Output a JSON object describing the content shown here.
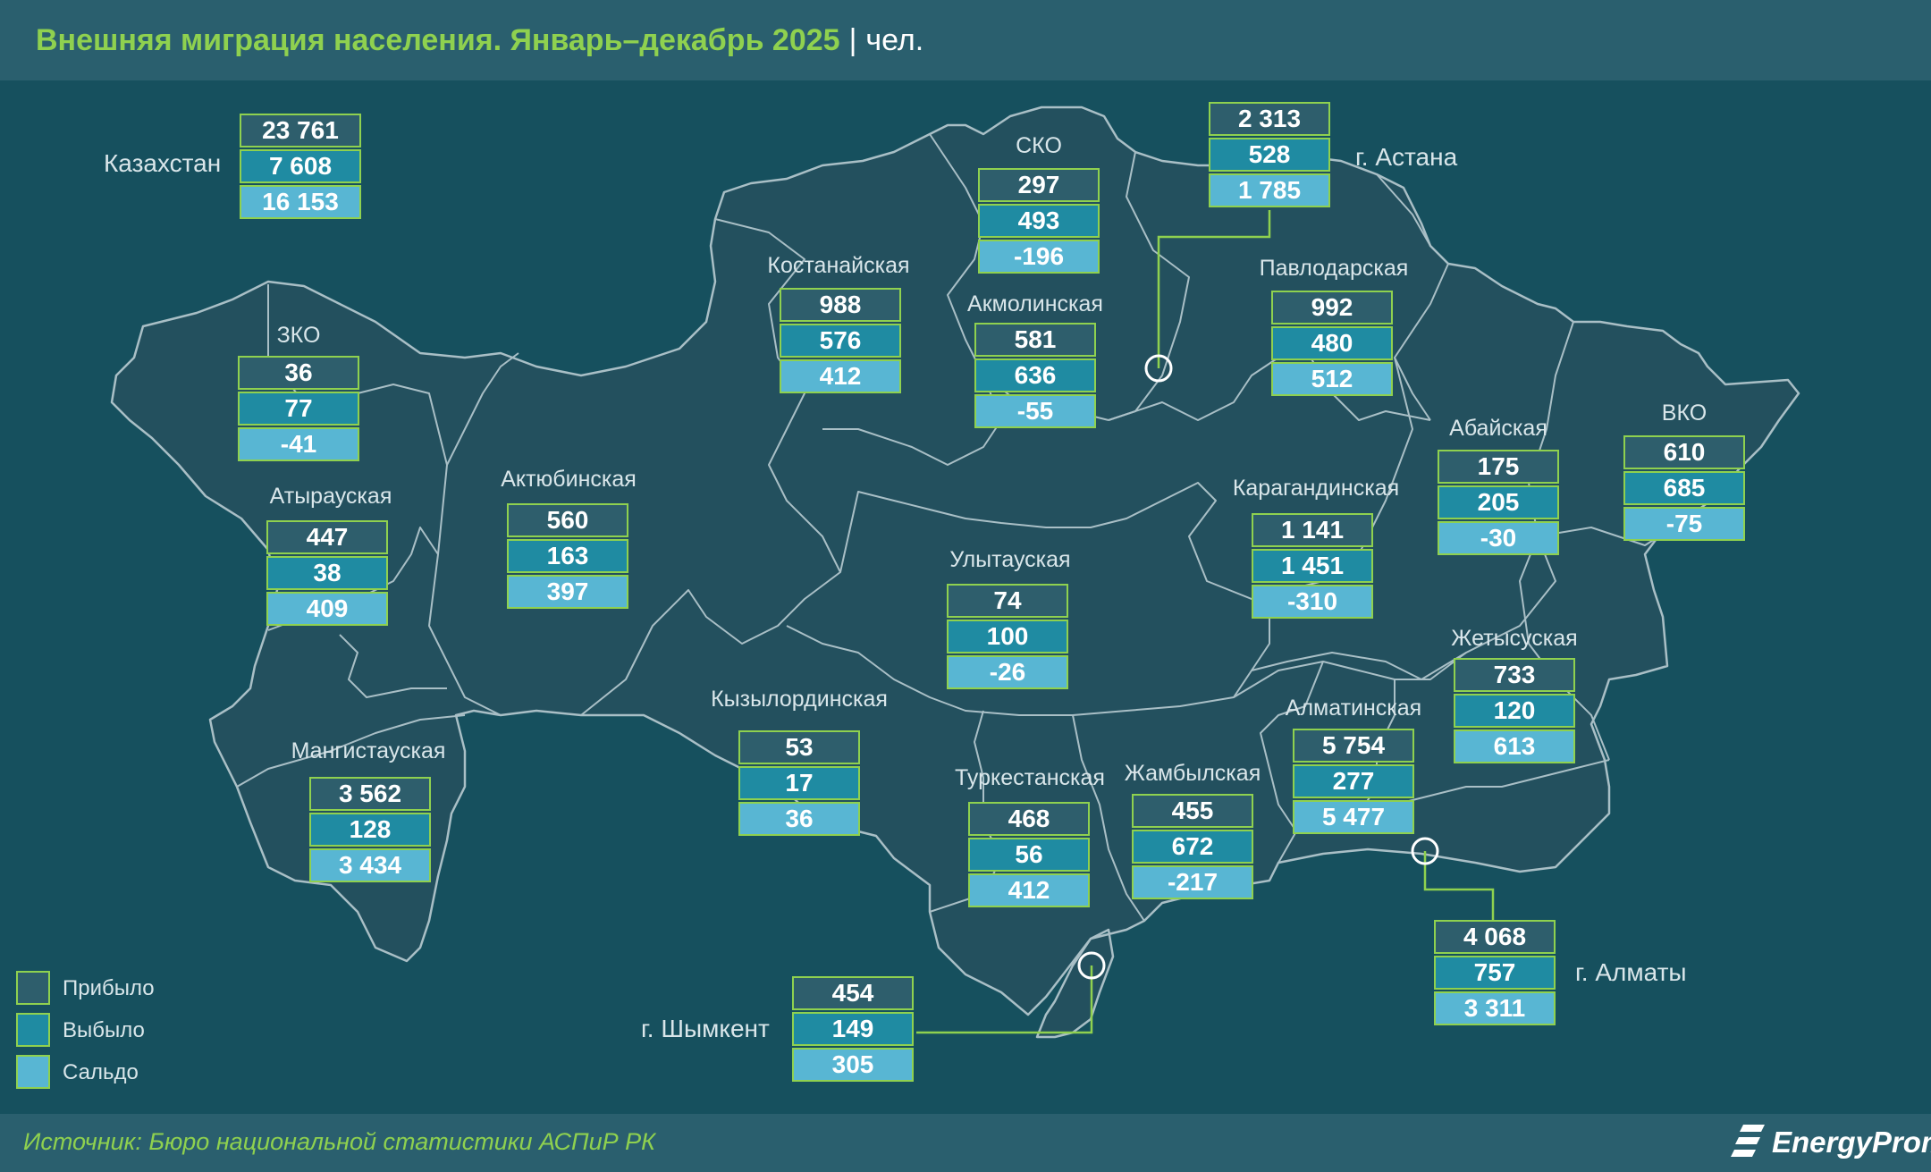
{
  "header": {
    "title": "Внешняя миграция населения. Январь–декабрь 2025",
    "separator": "|",
    "unit": "чел."
  },
  "footer": {
    "source": "Источник: Бюро национальной статистики АСПиР РК",
    "logo_text": "EnergyProm",
    "logo_icon": "energyprom-logo-icon"
  },
  "legend": [
    {
      "label": "Прибыло",
      "color": "#2e5e6c"
    },
    {
      "label": "Выбыло",
      "color": "#1f8ba2"
    },
    {
      "label": "Сальдо",
      "color": "#58b6d3"
    }
  ],
  "colors": {
    "accent": "#8fd14f",
    "background": "#16505e",
    "region_fill": "#23505e",
    "border": "#a9bfc6"
  },
  "regions": {
    "kazakhstan": {
      "name": "Казахстан",
      "arrived": "23 761",
      "left": "7 608",
      "saldo": "16 153"
    },
    "astana": {
      "name": "г. Астана",
      "arrived": "2 313",
      "left": "528",
      "saldo": "1 785"
    },
    "sko": {
      "name": "СКО",
      "arrived": "297",
      "left": "493",
      "saldo": "-196"
    },
    "kostanai": {
      "name": "Костанайская",
      "arrived": "988",
      "left": "576",
      "saldo": "412"
    },
    "akmola": {
      "name": "Акмолинская",
      "arrived": "581",
      "left": "636",
      "saldo": "-55"
    },
    "pavlodar": {
      "name": "Павлодарская",
      "arrived": "992",
      "left": "480",
      "saldo": "512"
    },
    "zko": {
      "name": "ЗКО",
      "arrived": "36",
      "left": "77",
      "saldo": "-41"
    },
    "abai": {
      "name": "Абайская",
      "arrived": "175",
      "left": "205",
      "saldo": "-30"
    },
    "vko": {
      "name": "ВКО",
      "arrived": "610",
      "left": "685",
      "saldo": "-75"
    },
    "atyrau": {
      "name": "Атырауская",
      "arrived": "447",
      "left": "38",
      "saldo": "409"
    },
    "aktobe": {
      "name": "Актюбинская",
      "arrived": "560",
      "left": "163",
      "saldo": "397"
    },
    "karaganda": {
      "name": "Карагандинская",
      "arrived": "1 141",
      "left": "1 451",
      "saldo": "-310"
    },
    "ulytau": {
      "name": "Улытауская",
      "arrived": "74",
      "left": "100",
      "saldo": "-26"
    },
    "zhetysu": {
      "name": "Жетысуская",
      "arrived": "733",
      "left": "120",
      "saldo": "613"
    },
    "kyzylorda": {
      "name": "Кызылординская",
      "arrived": "53",
      "left": "17",
      "saldo": "36"
    },
    "almaty_region": {
      "name": "Алматинская",
      "arrived": "5 754",
      "left": "277",
      "saldo": "5 477"
    },
    "mangystau": {
      "name": "Мангистауская",
      "arrived": "3 562",
      "left": "128",
      "saldo": "3 434"
    },
    "turkestan": {
      "name": "Туркестанская",
      "arrived": "468",
      "left": "56",
      "saldo": "412"
    },
    "zhambyl": {
      "name": "Жамбылская",
      "arrived": "455",
      "left": "672",
      "saldo": "-217"
    },
    "almaty_city": {
      "name": "г. Алматы",
      "arrived": "4 068",
      "left": "757",
      "saldo": "3 311"
    },
    "shymkent": {
      "name": "г. Шымкент",
      "arrived": "454",
      "left": "149",
      "saldo": "305"
    }
  }
}
